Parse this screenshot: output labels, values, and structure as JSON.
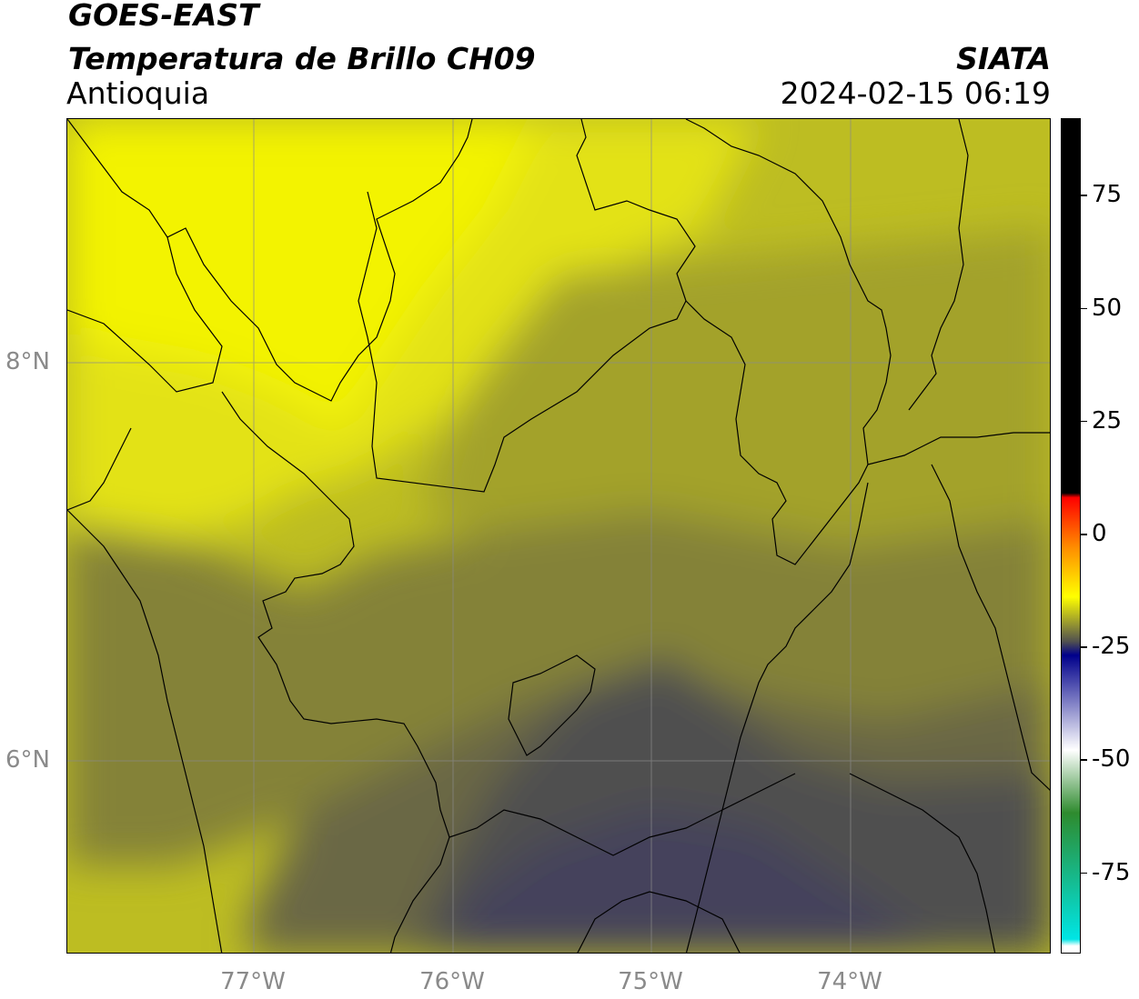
{
  "header": {
    "title_line1": "GOES-EAST",
    "title_line2": "Temperatura de Brillo CH09",
    "brand": "SIATA",
    "region": "Antioquia",
    "datetime": "2024-02-15 06:19"
  },
  "map": {
    "lat_labels": [
      {
        "value": 8,
        "text": "8°N"
      },
      {
        "value": 6,
        "text": "6°N"
      }
    ],
    "lon_labels": [
      {
        "value": -77,
        "text": "77°W"
      },
      {
        "value": -76,
        "text": "76°W"
      },
      {
        "value": -75,
        "text": "75°W"
      },
      {
        "value": -74,
        "text": "74°W"
      }
    ],
    "gridlines": true,
    "field_colors": {
      "brightest_yellow": "#f3f300",
      "yellow": "#e3e214",
      "olive_yellow": "#bdbd22",
      "olive": "#a3a22c",
      "dark_olive": "#848238",
      "gray_olive": "#6a6844",
      "gray": "#4f4f4f",
      "blue_gray": "#44425c"
    }
  },
  "colorbar": {
    "ticks": [
      {
        "value": 75,
        "text": "75"
      },
      {
        "value": 50,
        "text": "50"
      },
      {
        "value": 25,
        "text": "25"
      },
      {
        "value": 0,
        "text": "0"
      },
      {
        "value": -25,
        "text": "-25"
      },
      {
        "value": -50,
        "text": "-50"
      },
      {
        "value": -75,
        "text": "-75"
      }
    ],
    "range": [
      -93,
      92
    ],
    "colors": {
      "warm": "#000000",
      "red": "#ff0000",
      "orange": "#ff8c00",
      "yellow": "#ffff00",
      "gray": "#505050",
      "navy": "#00008b",
      "white": "#ffffff",
      "green": "#2e8b2e",
      "cyan": "#00e5e5"
    }
  }
}
